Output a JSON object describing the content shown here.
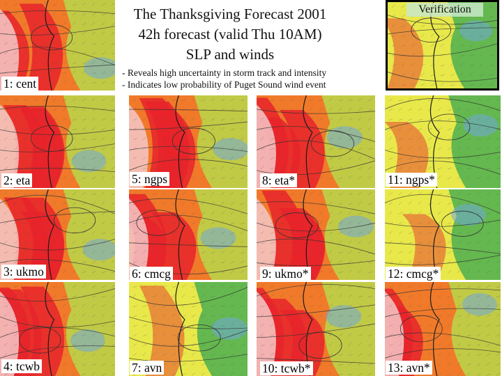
{
  "title_lines": [
    "The Thanksgiving Forecast 2001",
    "42h forecast (valid Thu 10AM)",
    "SLP and winds"
  ],
  "bullets": [
    "- Reveals high uncertainty in storm track and intensity",
    "- Indicates low probability of Puget Sound wind event"
  ],
  "verification_label": "Verification",
  "panels": [
    {
      "label": "1: cent",
      "intensity": "medium"
    },
    {
      "label": "2: eta",
      "intensity": "high"
    },
    {
      "label": "3: ukmo",
      "intensity": "high"
    },
    {
      "label": "4: tcwb",
      "intensity": "high"
    },
    {
      "label": "5: ngps",
      "intensity": "high"
    },
    {
      "label": "6: cmcg",
      "intensity": "high"
    },
    {
      "label": "7: avn",
      "intensity": "low"
    },
    {
      "label": "8: eta*",
      "intensity": "high"
    },
    {
      "label": "9: ukmo*",
      "intensity": "high"
    },
    {
      "label": "10: tcwb*",
      "intensity": "high"
    },
    {
      "label": "11: ngps*",
      "intensity": "low"
    },
    {
      "label": "12: cmcg*",
      "intensity": "low"
    },
    {
      "label": "13: avn*",
      "intensity": "medium"
    }
  ],
  "colors": {
    "calm": "#4caf50",
    "breezy": "#e8e84a",
    "strong": "#f07a2a",
    "gale": "#e8232a",
    "pale": "#f5c8c8",
    "ocean_calm": "#6fa8dc"
  }
}
